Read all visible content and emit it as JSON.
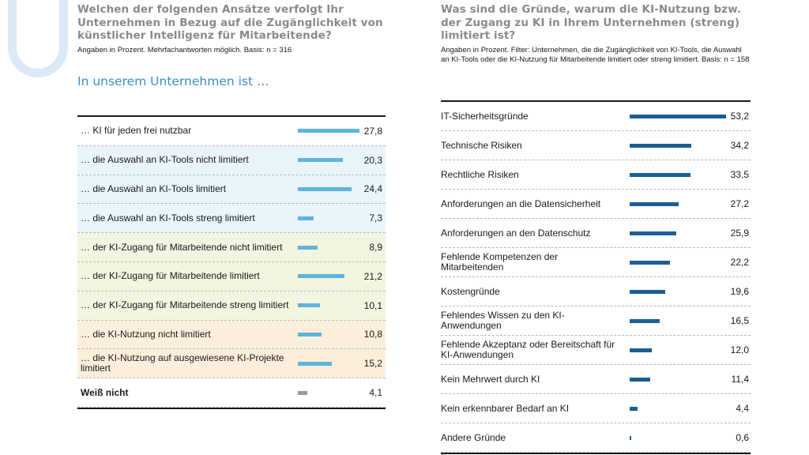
{
  "left": {
    "title": "Welchen der folgenden Ansätze verfolgt Ihr Unternehmen in Bezug auf die Zugänglichkeit von künstlicher Intelligenz für Mitarbeitende?",
    "subtitle": "Angaben in Prozent. Mehrfachantworten möglich. Basis: n = 316",
    "lead": "In unserem Unternehmen ist …"
  },
  "right": {
    "title": "Was sind die Gründe, warum die KI-Nutzung bzw. der Zugang zu KI in Ihrem Unternehmen (streng) limitiert ist?",
    "subtitle": "Angaben in Prozent. Filter: Unternehmen, die die Zugänglichkeit von KI-Tools, die Auswahl an KI-Tools oder die KI-Nutzung für Mitarbeitende limitiert oder streng limitiert. Basis: n = 158"
  },
  "colors": {
    "left_bar": "#5fb4dc",
    "left_bar_unknown": "#9a9a9a",
    "right_bar": "#1d5f94",
    "bg_none": "#ffffff",
    "bg_blue": "#eaf4fb",
    "bg_green": "#f2f5df",
    "bg_orange": "#fbefdc"
  },
  "chart_data": [
    {
      "type": "bar",
      "orientation": "horizontal",
      "xlim": [
        0,
        27.8
      ],
      "categories": [
        "… KI für jeden frei nutzbar",
        "… die Auswahl an KI-Tools nicht limitiert",
        "… die Auswahl an KI-Tools limitiert",
        "… die Auswahl an KI-Tools streng limitiert",
        "… der KI-Zugang für Mitarbeitende nicht limitiert",
        "… der KI-Zugang für Mitarbeitende limitiert",
        "… der KI-Zugang für Mitarbeitende streng limitiert",
        "… die KI-Nutzung nicht limitiert",
        "… die KI-Nutzung auf ausgewiesene KI-Projekte limitiert",
        "Weiß nicht"
      ],
      "values": [
        27.8,
        20.3,
        24.4,
        7.3,
        8.9,
        21.2,
        10.1,
        10.8,
        15.2,
        4.1
      ],
      "labels": [
        "27,8",
        "20,3",
        "24,4",
        "7,3",
        "8,9",
        "21,2",
        "10,1",
        "10,8",
        "15,2",
        "4,1"
      ],
      "row_groups": [
        "none",
        "blue",
        "blue",
        "blue",
        "green",
        "green",
        "green",
        "orange",
        "orange",
        "none"
      ]
    },
    {
      "type": "bar",
      "orientation": "horizontal",
      "xlim": [
        0,
        53.2
      ],
      "categories": [
        "IT-Sicherheitsgründe",
        "Technische Risiken",
        "Rechtliche Risiken",
        "Anforderungen an die Datensicherheit",
        "Anforderungen an den Datenschutz",
        "Fehlende Kompetenzen der Mitarbeitenden",
        "Kostengründe",
        "Fehlendes Wissen zu den KI-Anwendungen",
        "Fehlende Akzeptanz oder Bereitschaft für KI-Anwendungen",
        "Kein Mehrwert durch KI",
        "Kein erkennbarer Bedarf an KI",
        "Andere Gründe"
      ],
      "values": [
        53.2,
        34.2,
        33.5,
        27.2,
        25.9,
        22.2,
        19.6,
        16.5,
        12.0,
        11.4,
        4.4,
        0.6
      ],
      "labels": [
        "53,2",
        "34,2",
        "33,5",
        "27,2",
        "25,9",
        "22,2",
        "19,6",
        "16,5",
        "12,0",
        "11,4",
        "4,4",
        "0,6"
      ]
    }
  ]
}
